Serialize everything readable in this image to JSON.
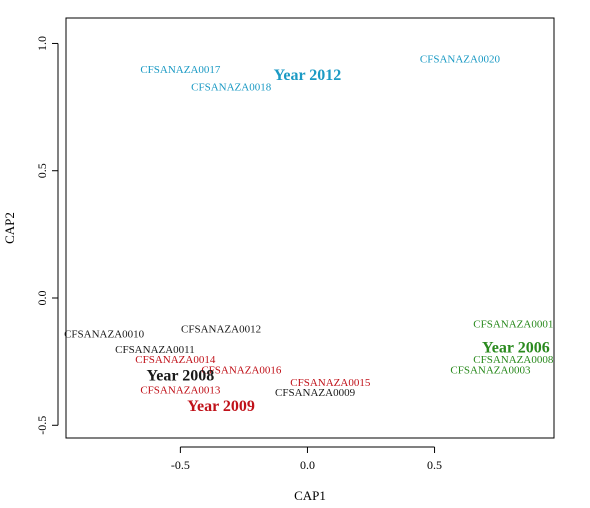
{
  "chart_data": {
    "type": "scatter",
    "title": "",
    "xlabel": "CAP1",
    "ylabel": "CAP2",
    "xlim": [
      -0.95,
      0.97
    ],
    "ylim": [
      -0.55,
      1.1
    ],
    "x_ticks": [
      -0.5,
      0.0,
      0.5
    ],
    "y_ticks": [
      -0.5,
      0.0,
      0.5,
      1.0
    ],
    "x_tick_labels": [
      "-0.5",
      "0.0",
      "0.5"
    ],
    "y_tick_labels": [
      "-0.5",
      "0.0",
      "0.5",
      "1.0"
    ],
    "grid": false,
    "legend": "none",
    "points": [
      {
        "label": "CFSANAZA0017",
        "x": -0.5,
        "y": 0.9,
        "color": "#1b9ac4"
      },
      {
        "label": "CFSANAZA0018",
        "x": -0.3,
        "y": 0.83,
        "color": "#1b9ac4"
      },
      {
        "label": "CFSANAZA0020",
        "x": 0.6,
        "y": 0.94,
        "color": "#1b9ac4"
      },
      {
        "label": "CFSANAZA0010",
        "x": -0.8,
        "y": -0.14,
        "color": "#1a1a1a"
      },
      {
        "label": "CFSANAZA0011",
        "x": -0.6,
        "y": -0.2,
        "color": "#1a1a1a"
      },
      {
        "label": "CFSANAZA0012",
        "x": -0.34,
        "y": -0.12,
        "color": "#1a1a1a"
      },
      {
        "label": "CFSANAZA0009",
        "x": 0.03,
        "y": -0.37,
        "color": "#1a1a1a"
      },
      {
        "label": "CFSANAZA0014",
        "x": -0.52,
        "y": -0.24,
        "color": "#c0121a"
      },
      {
        "label": "CFSANAZA0016",
        "x": -0.26,
        "y": -0.28,
        "color": "#c0121a"
      },
      {
        "label": "CFSANAZA0013",
        "x": -0.5,
        "y": -0.36,
        "color": "#c0121a"
      },
      {
        "label": "CFSANAZA0015",
        "x": 0.09,
        "y": -0.33,
        "color": "#c0121a"
      },
      {
        "label": "CFSANAZA0001",
        "x": 0.81,
        "y": -0.1,
        "color": "#2a8a1e"
      },
      {
        "label": "CFSANAZA0008",
        "x": 0.81,
        "y": -0.24,
        "color": "#2a8a1e"
      },
      {
        "label": "CFSANAZA0003",
        "x": 0.72,
        "y": -0.28,
        "color": "#2a8a1e"
      }
    ],
    "group_labels": [
      {
        "label": "Year 2012",
        "x": 0.0,
        "y": 0.88,
        "color": "#1b9ac4"
      },
      {
        "label": "Year 2008",
        "x": -0.5,
        "y": -0.3,
        "color": "#1a1a1a"
      },
      {
        "label": "Year 2009",
        "x": -0.34,
        "y": -0.42,
        "color": "#c0121a"
      },
      {
        "label": "Year 2006",
        "x": 0.82,
        "y": -0.19,
        "color": "#2a8a1e"
      }
    ]
  }
}
